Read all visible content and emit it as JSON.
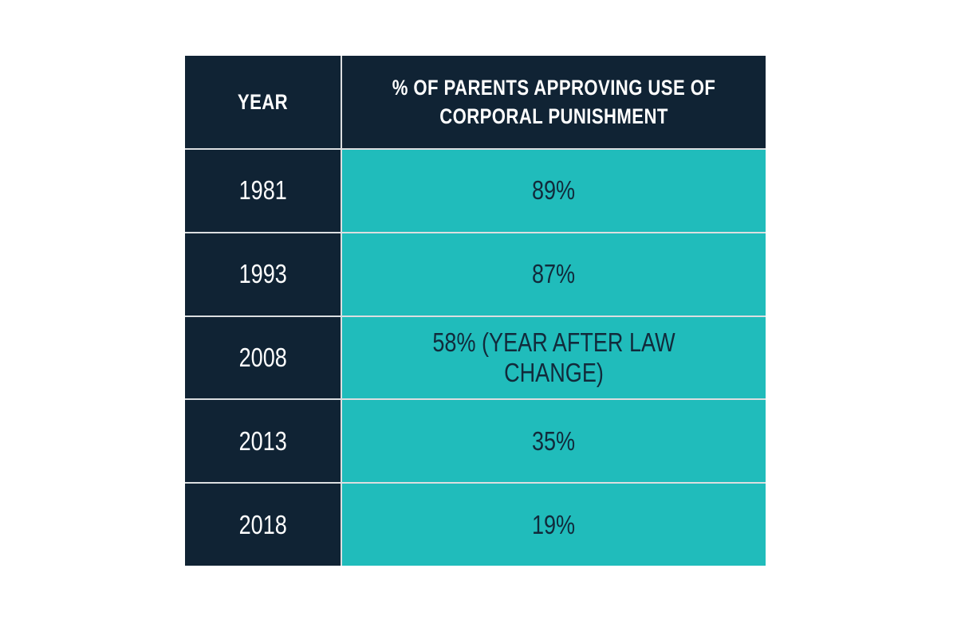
{
  "table": {
    "columns": [
      {
        "label": "YEAR"
      },
      {
        "label": "% OF PARENTS APPROVING USE OF CORPORAL PUNISHMENT"
      }
    ],
    "rows": [
      {
        "year": "1981",
        "value": "89%"
      },
      {
        "year": "1993",
        "value": "87%"
      },
      {
        "year": "2008",
        "value": "58% (YEAR AFTER LAW CHANGE)"
      },
      {
        "year": "2013",
        "value": "35%"
      },
      {
        "year": "2018",
        "value": "19%"
      }
    ],
    "colors": {
      "header_bg": "#102334",
      "year_column_bg": "#102334",
      "value_column_bg": "#20bcbb",
      "header_text": "#ffffff",
      "value_text": "#112a3b",
      "separator": "#dcdee0",
      "page_bg": "#ffffff"
    }
  },
  "chart_data": {
    "type": "table",
    "title": "% of parents approving use of corporal punishment by year",
    "columns": [
      "YEAR",
      "% OF PARENTS APPROVING USE OF CORPORAL PUNISHMENT"
    ],
    "rows": [
      [
        "1981",
        "89%"
      ],
      [
        "1993",
        "87%"
      ],
      [
        "2008",
        "58% (YEAR AFTER LAW CHANGE)"
      ],
      [
        "2013",
        "35%"
      ],
      [
        "2018",
        "19%"
      ]
    ],
    "categories": [
      "1981",
      "1993",
      "2008",
      "2013",
      "2018"
    ],
    "values": [
      89,
      87,
      58,
      35,
      19
    ],
    "annotations": [
      "2008 value noted as year after law change"
    ],
    "ylim": [
      0,
      100
    ],
    "grid": false,
    "legend_position": "none"
  }
}
